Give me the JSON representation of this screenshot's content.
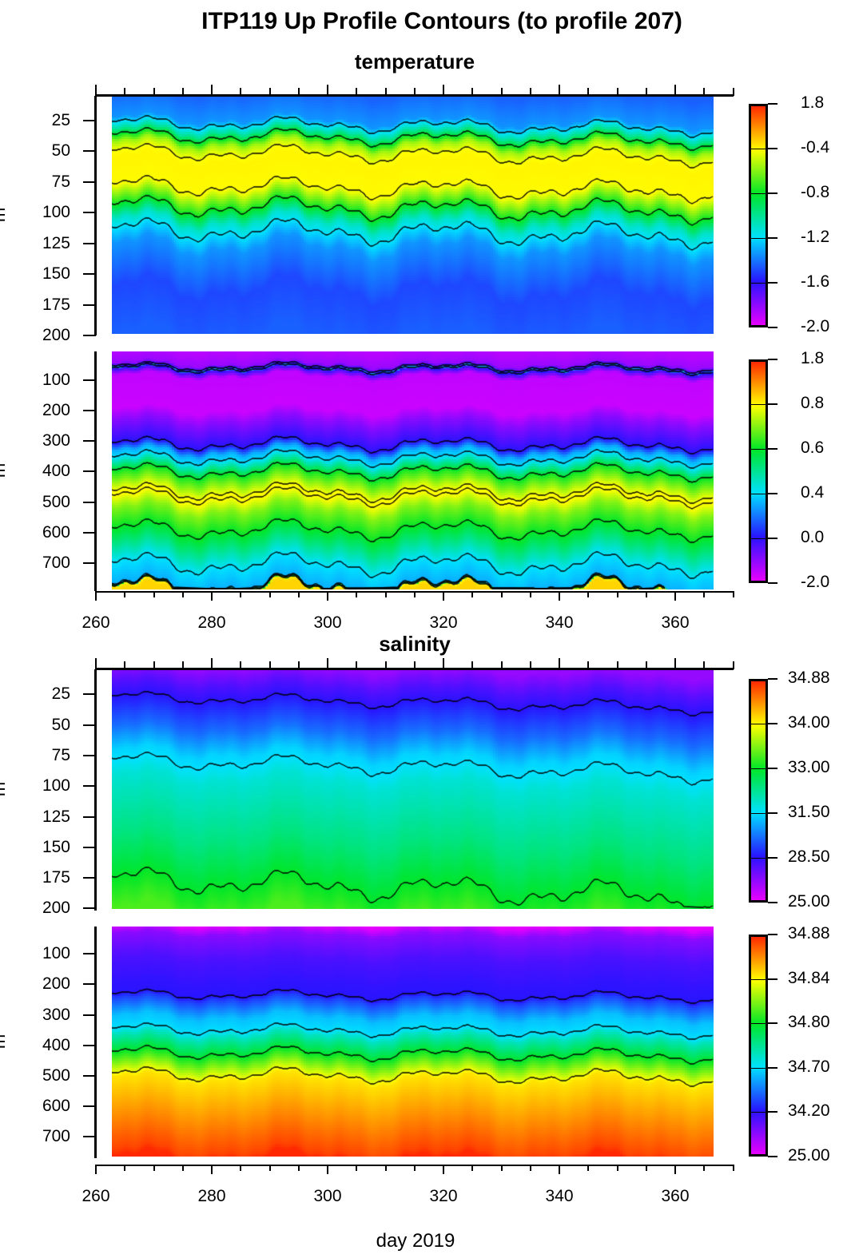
{
  "title": "ITP119 Up Profile Contours (to profile 207)",
  "xlabel": "day 2019",
  "chart_data": [
    {
      "type": "heatmap",
      "variable": "temperature",
      "subtitle": "temperature",
      "ylabel": "m",
      "xlim": [
        263,
        367
      ],
      "ylim": [
        5,
        200
      ],
      "yticks": [
        25,
        50,
        75,
        100,
        125,
        150,
        175,
        200
      ],
      "colorbar_levels": [
        -2.0,
        -1.6,
        -1.2,
        -0.8,
        -0.4,
        1.8
      ],
      "colorbar_labels": [
        "1.8",
        "-0.4",
        "-0.8",
        "-1.2",
        "-1.6",
        "-2.0"
      ],
      "profile": [
        [
          0,
          -1.45
        ],
        [
          22,
          -1.35
        ],
        [
          32,
          -1.0
        ],
        [
          42,
          -0.55
        ],
        [
          55,
          -0.3
        ],
        [
          75,
          -0.35
        ],
        [
          90,
          -0.7
        ],
        [
          105,
          -1.1
        ],
        [
          125,
          -1.35
        ],
        [
          160,
          -1.5
        ],
        [
          200,
          -1.45
        ]
      ]
    },
    {
      "type": "heatmap",
      "variable": "temperature",
      "ylabel": "m",
      "xlim": [
        263,
        367
      ],
      "ylim": [
        5,
        789
      ],
      "yticks": [
        100,
        200,
        300,
        400,
        500,
        600,
        700
      ],
      "colorbar_levels": [
        -2.0,
        0.0,
        0.4,
        0.6,
        0.8,
        1.8
      ],
      "colorbar_labels": [
        "1.8",
        "0.8",
        "0.6",
        "0.4",
        "0.0",
        "-2.0"
      ],
      "profile": [
        [
          0,
          -1.5
        ],
        [
          40,
          -1.2
        ],
        [
          55,
          0.3
        ],
        [
          65,
          -0.5
        ],
        [
          80,
          -1.6
        ],
        [
          190,
          -1.7
        ],
        [
          230,
          -1.0
        ],
        [
          290,
          -0.2
        ],
        [
          330,
          0.3
        ],
        [
          400,
          0.62
        ],
        [
          470,
          0.82
        ],
        [
          520,
          0.7
        ],
        [
          600,
          0.58
        ],
        [
          700,
          0.4
        ],
        [
          770,
          0.3
        ],
        [
          780,
          0.9
        ],
        [
          789,
          1.0
        ]
      ],
      "xticks": [
        260,
        280,
        300,
        320,
        340,
        360
      ]
    },
    {
      "type": "heatmap",
      "variable": "salinity",
      "subtitle": "salinity",
      "ylabel": "m",
      "xlim": [
        263,
        367
      ],
      "ylim": [
        5,
        200
      ],
      "yticks": [
        25,
        50,
        75,
        100,
        125,
        150,
        175,
        200
      ],
      "colorbar_levels": [
        25.0,
        28.5,
        31.5,
        33.0,
        34.0,
        34.88
      ],
      "colorbar_labels": [
        "34.88",
        "34.00",
        "33.00",
        "31.50",
        "28.50",
        "25.00"
      ],
      "profile": [
        [
          0,
          26.5
        ],
        [
          15,
          27.8
        ],
        [
          28,
          28.6
        ],
        [
          50,
          29.8
        ],
        [
          70,
          31.3
        ],
        [
          90,
          31.8
        ],
        [
          140,
          32.4
        ],
        [
          175,
          33.0
        ],
        [
          200,
          33.3
        ]
      ]
    },
    {
      "type": "heatmap",
      "variable": "salinity",
      "ylabel": "m",
      "xlim": [
        263,
        367
      ],
      "ylim": [
        5,
        760
      ],
      "yticks": [
        100,
        200,
        300,
        400,
        500,
        600,
        700
      ],
      "colorbar_levels": [
        25.0,
        34.2,
        34.7,
        34.8,
        34.84,
        34.88
      ],
      "colorbar_labels": [
        "34.88",
        "34.84",
        "34.80",
        "34.70",
        "34.20",
        "25.00"
      ],
      "profile": [
        [
          0,
          25.0
        ],
        [
          30,
          29.5
        ],
        [
          110,
          32.5
        ],
        [
          190,
          33.8
        ],
        [
          240,
          34.3
        ],
        [
          300,
          34.62
        ],
        [
          360,
          34.73
        ],
        [
          420,
          34.8
        ],
        [
          500,
          34.845
        ],
        [
          620,
          34.86
        ],
        [
          740,
          34.875
        ],
        [
          760,
          34.88
        ]
      ],
      "xticks": [
        260,
        280,
        300,
        320,
        340,
        360
      ]
    }
  ]
}
